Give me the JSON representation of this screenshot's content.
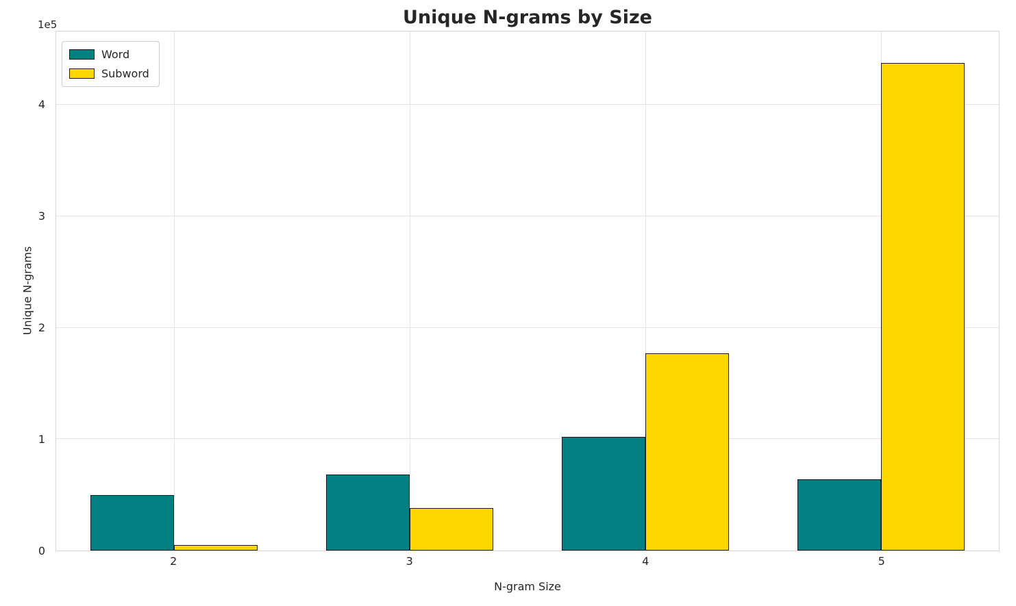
{
  "chart_data": {
    "type": "bar",
    "title": "Unique N-grams by Size",
    "xlabel": "N-gram Size",
    "ylabel": "Unique N-grams",
    "categories": [
      "2",
      "3",
      "4",
      "5"
    ],
    "series": [
      {
        "name": "Word",
        "color": "#008080",
        "values": [
          50000,
          68000,
          102000,
          64000
        ]
      },
      {
        "name": "Subword",
        "color": "#FFD700",
        "values": [
          5000,
          38000,
          177000,
          438000
        ]
      }
    ],
    "ylim": [
      0,
      466000
    ],
    "yticks": [
      0,
      100000,
      200000,
      300000,
      400000
    ],
    "ytick_labels": [
      "0",
      "1",
      "2",
      "3",
      "4"
    ],
    "offset_text": "1e5",
    "legend_position": "upper left",
    "grid": true,
    "bar_edge_color": "#1a1a1a",
    "bar_group_fraction": 0.71
  }
}
